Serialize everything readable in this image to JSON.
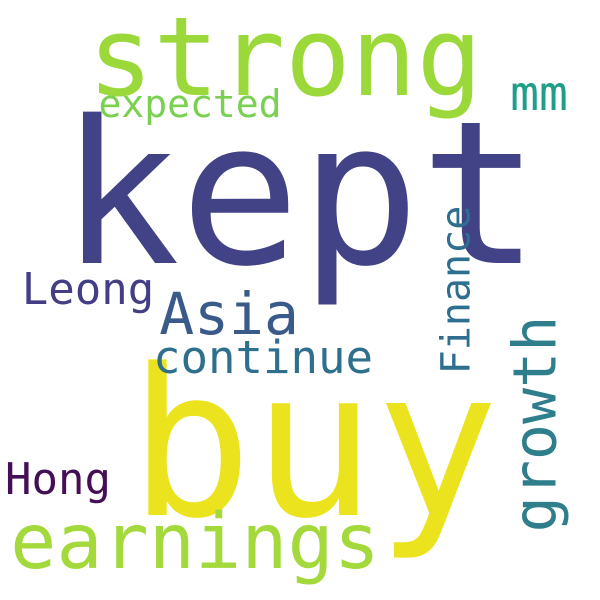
{
  "words": [
    {
      "text": "kept",
      "color": "#424287"
    },
    {
      "text": "buy",
      "color": "#ece31f"
    },
    {
      "text": "strong",
      "color": "#9bd93a"
    },
    {
      "text": "earnings",
      "color": "#a4d93b"
    },
    {
      "text": "growth",
      "color": "#2e7e8c"
    },
    {
      "text": "Asia",
      "color": "#3a5a8a"
    },
    {
      "text": "continue",
      "color": "#2e6f8e"
    },
    {
      "text": "expected",
      "color": "#7ad151"
    },
    {
      "text": "Finance",
      "color": "#2e6e8e"
    },
    {
      "text": "Leong",
      "color": "#433e85"
    },
    {
      "text": "Hong",
      "color": "#440f55"
    },
    {
      "text": "mm",
      "color": "#1f9e89"
    }
  ]
}
